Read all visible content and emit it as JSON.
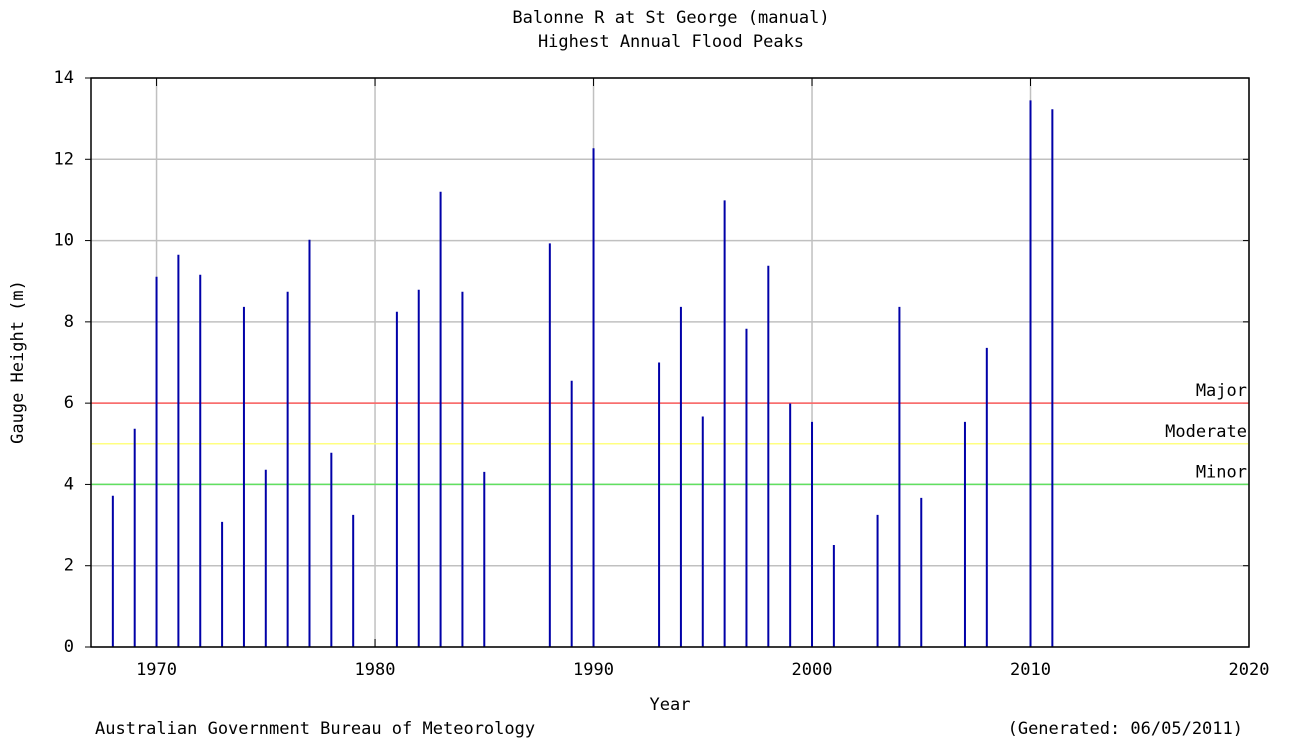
{
  "chart_data": {
    "type": "bar",
    "title": "Balonne R at St George (manual)",
    "subtitle": "Highest Annual Flood Peaks",
    "xlabel": "Year",
    "ylabel": "Gauge Height (m)",
    "x": [
      1968,
      1969,
      1970,
      1971,
      1972,
      1973,
      1974,
      1975,
      1976,
      1977,
      1978,
      1979,
      1981,
      1982,
      1983,
      1984,
      1985,
      1988,
      1989,
      1990,
      1993,
      1994,
      1995,
      1996,
      1997,
      1998,
      1999,
      2000,
      2001,
      2003,
      2004,
      2005,
      2007,
      2008,
      2010,
      2011
    ],
    "values": [
      3.72,
      5.37,
      9.11,
      9.65,
      9.16,
      3.08,
      8.37,
      4.36,
      8.74,
      10.02,
      4.78,
      3.25,
      8.25,
      8.79,
      11.2,
      8.74,
      4.31,
      9.93,
      6.55,
      12.27,
      7.0,
      8.37,
      5.67,
      10.99,
      7.83,
      9.38,
      5.99,
      5.54,
      2.51,
      3.25,
      8.37,
      3.67,
      5.54,
      7.36,
      13.45,
      13.23
    ],
    "color": "#0000a8",
    "xlim": [
      1967,
      2020
    ],
    "ylim": [
      0,
      14
    ],
    "xticks": [
      1970,
      1980,
      1990,
      2000,
      2010,
      2020
    ],
    "yticks": [
      0,
      2,
      4,
      6,
      8,
      10,
      12,
      14
    ],
    "grid": true,
    "thresholds": [
      {
        "name": "Major",
        "value": 6,
        "color": "#ff6060"
      },
      {
        "name": "Moderate",
        "value": 5,
        "color": "#ffff80"
      },
      {
        "name": "Minor",
        "value": 4,
        "color": "#60e060"
      }
    ],
    "footer_left": "Australian Government Bureau of Meteorology",
    "footer_right": "(Generated: 06/05/2011)"
  }
}
